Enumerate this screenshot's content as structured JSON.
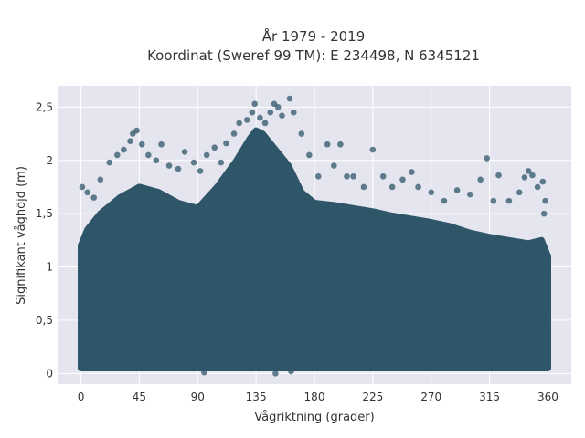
{
  "chart_data": {
    "type": "scatter",
    "title_line1": "År 1979 - 2019",
    "title_line2": "Koordinat (Sweref 99 TM): E 234498, N 6345121",
    "xlabel": "Vågriktning (grader)",
    "ylabel": "Signifikant våghöjd (m)",
    "xlim": [
      -18,
      378
    ],
    "ylim": [
      -0.1,
      2.7
    ],
    "x_ticks": [
      {
        "value": 0,
        "label": "0"
      },
      {
        "value": 45,
        "label": "45"
      },
      {
        "value": 90,
        "label": "90"
      },
      {
        "value": 135,
        "label": "135"
      },
      {
        "value": 180,
        "label": "180"
      },
      {
        "value": 225,
        "label": "225"
      },
      {
        "value": 270,
        "label": "270"
      },
      {
        "value": 315,
        "label": "315"
      },
      {
        "value": 360,
        "label": "360"
      }
    ],
    "y_ticks": [
      {
        "value": 0,
        "label": "0"
      },
      {
        "value": 0.5,
        "label": "0,5"
      },
      {
        "value": 1,
        "label": "1"
      },
      {
        "value": 1.5,
        "label": "1,5"
      },
      {
        "value": 2,
        "label": "2"
      },
      {
        "value": 2.5,
        "label": "2,5"
      }
    ],
    "point_color": "#2f5569",
    "background_color": "#e5e5ef",
    "dense_region": {
      "x": [
        0,
        5,
        15,
        30,
        45,
        60,
        75,
        90,
        105,
        120,
        130,
        135,
        140,
        150,
        160,
        170,
        180,
        195,
        210,
        225,
        240,
        255,
        270,
        285,
        300,
        315,
        330,
        345,
        355,
        360
      ],
      "y_min": [
        0.05,
        0.05,
        0.05,
        0.05,
        0.05,
        0.05,
        0.05,
        0.05,
        0.05,
        0.05,
        0.05,
        0.05,
        0.05,
        0.05,
        0.05,
        0.05,
        0.05,
        0.05,
        0.05,
        0.05,
        0.05,
        0.05,
        0.05,
        0.05,
        0.05,
        0.05,
        0.05,
        0.05,
        0.05,
        0.05
      ],
      "y_max": [
        1.2,
        1.35,
        1.5,
        1.65,
        1.75,
        1.7,
        1.6,
        1.55,
        1.75,
        2.0,
        2.2,
        2.28,
        2.25,
        2.1,
        1.95,
        1.7,
        1.6,
        1.58,
        1.55,
        1.52,
        1.48,
        1.45,
        1.42,
        1.38,
        1.32,
        1.28,
        1.25,
        1.22,
        1.25,
        1.1
      ]
    },
    "outliers": [
      {
        "x": 1,
        "y": 1.75
      },
      {
        "x": 5,
        "y": 1.7
      },
      {
        "x": 10,
        "y": 1.65
      },
      {
        "x": 15,
        "y": 1.82
      },
      {
        "x": 22,
        "y": 1.98
      },
      {
        "x": 28,
        "y": 2.05
      },
      {
        "x": 33,
        "y": 2.1
      },
      {
        "x": 38,
        "y": 2.18
      },
      {
        "x": 40,
        "y": 2.25
      },
      {
        "x": 43,
        "y": 2.28
      },
      {
        "x": 47,
        "y": 2.15
      },
      {
        "x": 52,
        "y": 2.05
      },
      {
        "x": 58,
        "y": 2.0
      },
      {
        "x": 62,
        "y": 2.15
      },
      {
        "x": 68,
        "y": 1.95
      },
      {
        "x": 75,
        "y": 1.92
      },
      {
        "x": 80,
        "y": 2.08
      },
      {
        "x": 87,
        "y": 1.98
      },
      {
        "x": 92,
        "y": 1.9
      },
      {
        "x": 97,
        "y": 2.05
      },
      {
        "x": 103,
        "y": 2.12
      },
      {
        "x": 108,
        "y": 1.98
      },
      {
        "x": 112,
        "y": 2.16
      },
      {
        "x": 118,
        "y": 2.25
      },
      {
        "x": 122,
        "y": 2.35
      },
      {
        "x": 128,
        "y": 2.38
      },
      {
        "x": 132,
        "y": 2.45
      },
      {
        "x": 134,
        "y": 2.53
      },
      {
        "x": 138,
        "y": 2.4
      },
      {
        "x": 142,
        "y": 2.35
      },
      {
        "x": 146,
        "y": 2.45
      },
      {
        "x": 149,
        "y": 2.53
      },
      {
        "x": 152,
        "y": 2.5
      },
      {
        "x": 155,
        "y": 2.42
      },
      {
        "x": 161,
        "y": 2.58
      },
      {
        "x": 164,
        "y": 2.45
      },
      {
        "x": 170,
        "y": 2.25
      },
      {
        "x": 176,
        "y": 2.05
      },
      {
        "x": 183,
        "y": 1.85
      },
      {
        "x": 190,
        "y": 2.15
      },
      {
        "x": 195,
        "y": 1.95
      },
      {
        "x": 200,
        "y": 2.15
      },
      {
        "x": 205,
        "y": 1.85
      },
      {
        "x": 210,
        "y": 1.85
      },
      {
        "x": 218,
        "y": 1.75
      },
      {
        "x": 225,
        "y": 2.1
      },
      {
        "x": 233,
        "y": 1.85
      },
      {
        "x": 240,
        "y": 1.75
      },
      {
        "x": 248,
        "y": 1.82
      },
      {
        "x": 255,
        "y": 1.89
      },
      {
        "x": 260,
        "y": 1.75
      },
      {
        "x": 270,
        "y": 1.7
      },
      {
        "x": 280,
        "y": 1.62
      },
      {
        "x": 290,
        "y": 1.72
      },
      {
        "x": 300,
        "y": 1.68
      },
      {
        "x": 308,
        "y": 1.82
      },
      {
        "x": 313,
        "y": 2.02
      },
      {
        "x": 318,
        "y": 1.62
      },
      {
        "x": 322,
        "y": 1.86
      },
      {
        "x": 330,
        "y": 1.62
      },
      {
        "x": 338,
        "y": 1.7
      },
      {
        "x": 342,
        "y": 1.84
      },
      {
        "x": 345,
        "y": 1.9
      },
      {
        "x": 348,
        "y": 1.86
      },
      {
        "x": 352,
        "y": 1.75
      },
      {
        "x": 356,
        "y": 1.8
      },
      {
        "x": 358,
        "y": 1.62
      },
      {
        "x": 357,
        "y": 1.5
      },
      {
        "x": 150,
        "y": 0.0
      },
      {
        "x": 95,
        "y": 0.01
      },
      {
        "x": 162,
        "y": 0.02
      }
    ]
  }
}
